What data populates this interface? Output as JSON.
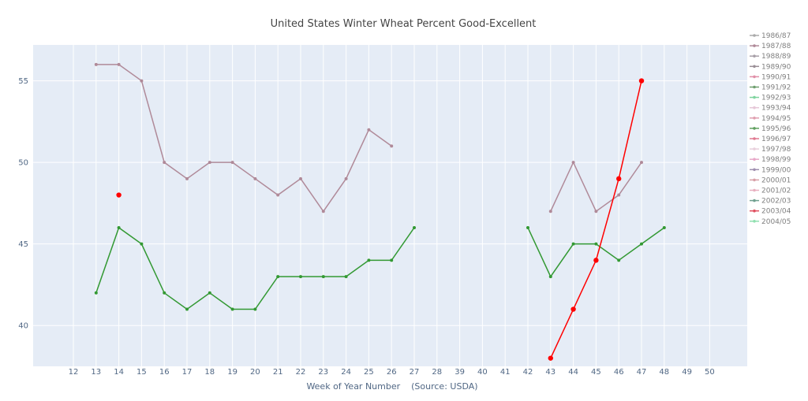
{
  "chart_data": {
    "type": "line",
    "title": "United States Winter Wheat Percent Good-Excellent",
    "xlabel": "Week of Year Number    (Source: USDA)",
    "ylabel": "",
    "x_ticks": [
      12,
      13,
      14,
      15,
      16,
      17,
      18,
      19,
      20,
      21,
      22,
      23,
      24,
      25,
      26,
      27,
      28,
      39,
      40,
      41,
      42,
      43,
      44,
      45,
      46,
      47,
      48,
      49,
      50
    ],
    "y_ticks": [
      40,
      45,
      50,
      55
    ],
    "ylim": [
      37.5,
      57.2
    ],
    "grid": true,
    "legend_position": "right",
    "legend": [
      "1986/87",
      "1987/88",
      "1988/89",
      "1989/90",
      "1990/91",
      "1991/92",
      "1992/93",
      "1993/94",
      "1994/95",
      "1995/96",
      "1996/97",
      "1997/98",
      "1998/99",
      "1999/00",
      "2000/01",
      "2001/02",
      "2002/03",
      "2003/04",
      "2004/05"
    ],
    "legend_colors": [
      "#aaaaaa",
      "#b08a99",
      "#a8a0a8",
      "#9a8f96",
      "#e08fa8",
      "#6f9f6f",
      "#7fd49f",
      "#e6c8d8",
      "#e0a0b0",
      "#5fa05f",
      "#e07890",
      "#e8d0dc",
      "#e8a8c8",
      "#a090b0",
      "#d8a0a8",
      "#e8b0c0",
      "#70a090",
      "#e05060",
      "#90e0b0"
    ],
    "series": [
      {
        "color": "#b08a99",
        "points": [
          [
            13,
            56
          ],
          [
            14,
            56
          ],
          [
            15,
            55
          ],
          [
            16,
            50
          ],
          [
            17,
            49
          ],
          [
            18,
            50
          ],
          [
            19,
            50
          ],
          [
            20,
            49
          ],
          [
            21,
            48
          ],
          [
            22,
            49
          ],
          [
            23,
            47
          ],
          [
            24,
            49
          ],
          [
            25,
            52
          ],
          [
            26,
            51
          ]
        ]
      },
      {
        "color": "#b08a99",
        "points": [
          [
            43,
            47
          ],
          [
            44,
            50
          ],
          [
            45,
            47
          ],
          [
            46,
            48
          ],
          [
            47,
            50
          ]
        ]
      },
      {
        "color": "#339933",
        "points": [
          [
            13,
            42
          ],
          [
            14,
            46
          ],
          [
            15,
            45
          ],
          [
            16,
            42
          ],
          [
            17,
            41
          ],
          [
            18,
            42
          ],
          [
            19,
            41
          ],
          [
            20,
            41
          ],
          [
            21,
            43
          ],
          [
            22,
            43
          ],
          [
            23,
            43
          ],
          [
            24,
            43
          ],
          [
            25,
            44
          ],
          [
            26,
            44
          ],
          [
            27,
            46
          ]
        ]
      },
      {
        "color": "#339933",
        "points": [
          [
            42,
            46
          ],
          [
            43,
            43
          ],
          [
            44,
            45
          ],
          [
            45,
            45
          ],
          [
            46,
            44
          ],
          [
            47,
            45
          ],
          [
            48,
            46
          ]
        ]
      },
      {
        "color": "#ff0000",
        "points": [
          [
            14,
            48
          ]
        ]
      },
      {
        "color": "#ff0000",
        "points": [
          [
            43,
            38
          ],
          [
            44,
            41
          ],
          [
            45,
            44
          ],
          [
            46,
            49
          ],
          [
            47,
            55
          ]
        ]
      }
    ]
  }
}
